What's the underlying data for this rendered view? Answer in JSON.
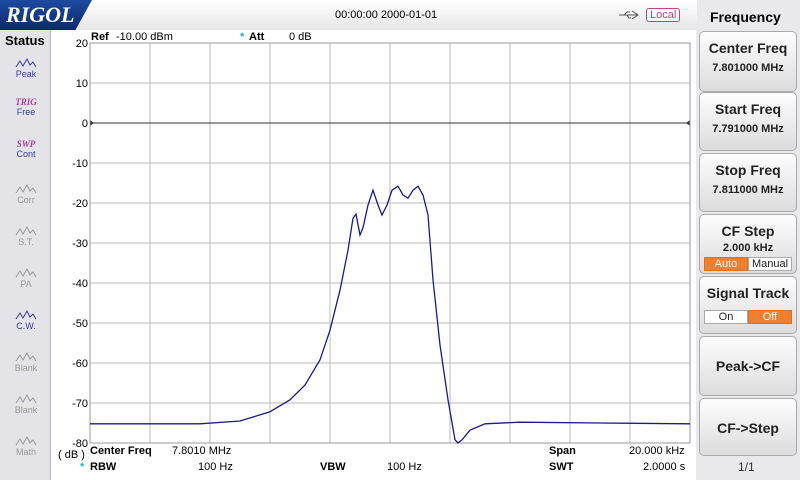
{
  "header": {
    "logo": "RIGOL",
    "datetime": "00:00:00 2000-01-01",
    "mode": "Local"
  },
  "status": {
    "title": "Status",
    "items": [
      {
        "label": "Peak"
      },
      {
        "top": "TRIG",
        "label": "Free"
      },
      {
        "top": "SWP",
        "label": "Cont"
      },
      {
        "label": "Corr"
      },
      {
        "label": "S.T."
      },
      {
        "label": "PA"
      },
      {
        "label": "C.W."
      },
      {
        "label": "Blank"
      },
      {
        "label": "Blank"
      },
      {
        "label": "Math"
      }
    ]
  },
  "plot": {
    "ref_label": "Ref",
    "ref_value": "-10.00 dBm",
    "att_flag": "*",
    "att_label": "Att",
    "att_value": "0 dB",
    "unit": "( dB )",
    "center_label": "Center Freq",
    "center_value": "7.8010 MHz",
    "span_label": "Span",
    "span_value": "20.000 kHz",
    "rbw_flag": "*",
    "rbw_label": "RBW",
    "rbw_value": "100 Hz",
    "vbw_label": "VBW",
    "vbw_value": "100 Hz",
    "swt_label": "SWT",
    "swt_value": "2.0000 s",
    "ylim": [
      -80,
      20
    ],
    "yticks": [
      20,
      10,
      0,
      -10,
      -20,
      -30,
      -40,
      -50,
      -60,
      -70,
      -80
    ],
    "xlim": [
      7.791,
      7.811
    ],
    "display_line": 0,
    "trace": {
      "color": "#1a1a8c",
      "x": [
        7.791,
        7.794667,
        7.796,
        7.797,
        7.797667,
        7.798167,
        7.798667,
        7.799,
        7.799333,
        7.7996,
        7.799767,
        7.799867,
        7.8,
        7.8001,
        7.800267,
        7.800433,
        7.8006,
        7.800733,
        7.8009,
        7.801067,
        7.801267,
        7.801433,
        7.8016,
        7.801767,
        7.801933,
        7.8021,
        7.802267,
        7.802433,
        7.802667,
        7.802933,
        7.803167,
        7.803267,
        7.8034,
        7.803667,
        7.804167,
        7.805333,
        7.808,
        7.811
      ],
      "values": [
        -75.2,
        -75.2,
        -74.5,
        -72.2,
        -69.2,
        -65.5,
        -59.2,
        -51.8,
        -41.8,
        -31.8,
        -23.8,
        -22.8,
        -28,
        -26.2,
        -20.5,
        -16.8,
        -20.5,
        -23,
        -20.5,
        -16.8,
        -15.8,
        -18,
        -18.8,
        -16.8,
        -15.8,
        -18,
        -23,
        -39.2,
        -55.5,
        -69.2,
        -79.2,
        -80,
        -79.2,
        -76.8,
        -75.2,
        -74.8,
        -75,
        -75.2
      ]
    }
  },
  "menu": {
    "title": "Frequency",
    "buttons": [
      {
        "label": "Center Freq",
        "value": "7.801000 MHz"
      },
      {
        "label": "Start Freq",
        "value": "7.791000 MHz"
      },
      {
        "label": "Stop Freq",
        "value": "7.811000 MHz"
      },
      {
        "label": "CF Step",
        "value": "2.000 kHz",
        "options": [
          "Auto",
          "Manual"
        ]
      },
      {
        "label": "Signal Track",
        "options": [
          "On",
          "Off"
        ]
      },
      {
        "label": "Peak->CF"
      },
      {
        "label": "CF->Step"
      }
    ],
    "page": "1/1"
  }
}
